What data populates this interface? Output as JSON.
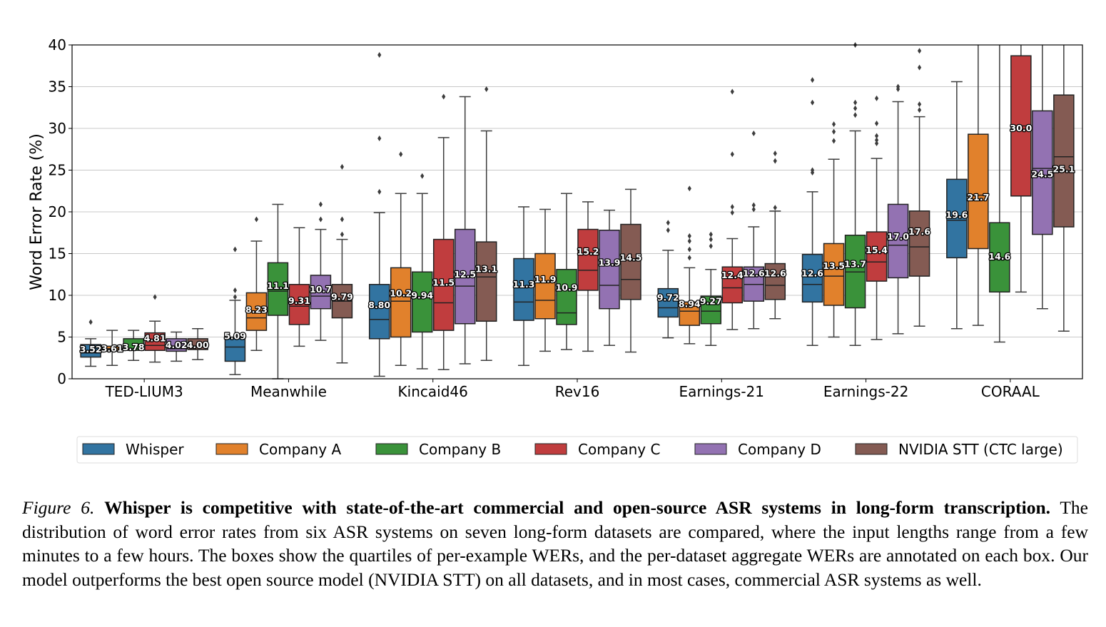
{
  "chart_data": {
    "type": "box",
    "title": "",
    "xlabel": "",
    "ylabel": "Word Error Rate (%)",
    "ylim": [
      0,
      40
    ],
    "yticks": [
      0,
      5,
      10,
      15,
      20,
      25,
      30,
      35,
      40
    ],
    "grid": true,
    "legend_placement": "bottom",
    "categories": [
      "TED-LIUM3",
      "Meanwhile",
      "Kincaid46",
      "Rev16",
      "Earnings-21",
      "Earnings-22",
      "CORAAL"
    ],
    "series": [
      {
        "name": "Whisper",
        "color": "#3274a1",
        "labels": [
          "3.52",
          "5.09",
          "8.80",
          "11.3",
          "9.72",
          "12.6",
          "19.6"
        ],
        "boxes": [
          {
            "wl": 1.5,
            "q1": 2.6,
            "med": 3.1,
            "q3": 4.1,
            "wh": 4.8,
            "out": [
              6.8
            ]
          },
          {
            "wl": 0.5,
            "q1": 2.1,
            "med": 3.8,
            "q3": 4.8,
            "wh": 9.4,
            "out": [
              9.8,
              10.6,
              15.5
            ]
          },
          {
            "wl": 0.3,
            "q1": 4.8,
            "med": 7.1,
            "q3": 11.3,
            "wh": 19.9,
            "out": [
              22.4,
              28.8,
              38.8
            ]
          },
          {
            "wl": 1.6,
            "q1": 7.0,
            "med": 9.2,
            "q3": 14.4,
            "wh": 20.6,
            "out": []
          },
          {
            "wl": 4.9,
            "q1": 7.4,
            "med": 8.5,
            "q3": 10.8,
            "wh": 15.4,
            "out": [
              17.8,
              18.7
            ]
          },
          {
            "wl": 4.0,
            "q1": 9.2,
            "med": 11.3,
            "q3": 14.9,
            "wh": 22.4,
            "out": [
              24.7,
              25.0,
              33.1,
              35.8
            ]
          },
          {
            "wl": 6.0,
            "q1": 14.5,
            "med": 19.0,
            "q3": 23.9,
            "wh": 35.6,
            "out": []
          }
        ]
      },
      {
        "name": "Company A",
        "color": "#e1812c",
        "labels": [
          "3.61",
          "8.23",
          "10.2",
          "11.9",
          "8.94",
          "13.5",
          "21.7"
        ],
        "boxes": [
          {
            "wl": 1.6,
            "q1": 3.3,
            "med": 3.6,
            "q3": 3.9,
            "wh": 5.8,
            "out": []
          },
          {
            "wl": 3.4,
            "q1": 5.8,
            "med": 7.3,
            "q3": 10.3,
            "wh": 16.5,
            "out": [
              19.1
            ]
          },
          {
            "wl": 1.6,
            "q1": 5.0,
            "med": 9.3,
            "q3": 13.3,
            "wh": 22.2,
            "out": [
              26.9
            ]
          },
          {
            "wl": 3.3,
            "q1": 7.2,
            "med": 9.4,
            "q3": 15.0,
            "wh": 20.3,
            "out": []
          },
          {
            "wl": 4.2,
            "q1": 6.4,
            "med": 8.1,
            "q3": 9.2,
            "wh": 13.3,
            "out": [
              14.5,
              15.5,
              16.5,
              17.1,
              22.8
            ]
          },
          {
            "wl": 5.0,
            "q1": 8.8,
            "med": 12.3,
            "q3": 16.2,
            "wh": 26.3,
            "out": [
              28.5,
              29.6,
              30.5
            ]
          },
          {
            "wl": 6.4,
            "q1": 15.6,
            "med": 22.0,
            "q3": 29.3,
            "wh": 42,
            "out": []
          }
        ]
      },
      {
        "name": "Company B",
        "color": "#3a923a",
        "labels": [
          "3.78",
          "11.1",
          "9.94",
          "10.9",
          "9.27",
          "13.7",
          "14.6"
        ],
        "boxes": [
          {
            "wl": 2.2,
            "q1": 3.4,
            "med": 3.6,
            "q3": 4.8,
            "wh": 5.8,
            "out": []
          },
          {
            "wl": 0.0,
            "q1": 7.6,
            "med": 10.5,
            "q3": 13.9,
            "wh": 20.9,
            "out": []
          },
          {
            "wl": 1.2,
            "q1": 5.6,
            "med": 9.7,
            "q3": 12.8,
            "wh": 22.2,
            "out": [
              24.3
            ]
          },
          {
            "wl": 3.5,
            "q1": 6.5,
            "med": 7.9,
            "q3": 13.1,
            "wh": 22.2,
            "out": []
          },
          {
            "wl": 4.0,
            "q1": 6.6,
            "med": 8.1,
            "q3": 9.9,
            "wh": 13.1,
            "out": [
              15.9,
              16.7,
              17.3
            ]
          },
          {
            "wl": 4.0,
            "q1": 8.5,
            "med": 12.8,
            "q3": 17.2,
            "wh": 29.7,
            "out": [
              31.6,
              32.4,
              33.1,
              40.0
            ]
          },
          {
            "wl": 4.4,
            "q1": 10.4,
            "med": 14.3,
            "q3": 18.7,
            "wh": 42,
            "out": []
          }
        ]
      },
      {
        "name": "Company C",
        "color": "#c03d3e",
        "labels": [
          "4.81",
          "9.31",
          "11.5",
          "15.2",
          "12.4",
          "15.4",
          "30.0"
        ],
        "boxes": [
          {
            "wl": 2.0,
            "q1": 3.4,
            "med": 4.0,
            "q3": 5.5,
            "wh": 6.9,
            "out": [
              9.8
            ]
          },
          {
            "wl": 3.9,
            "q1": 6.5,
            "med": 8.7,
            "q3": 11.3,
            "wh": 18.1,
            "out": []
          },
          {
            "wl": 1.1,
            "q1": 5.8,
            "med": 9.1,
            "q3": 16.7,
            "wh": 28.9,
            "out": [
              33.8
            ]
          },
          {
            "wl": 3.3,
            "q1": 10.6,
            "med": 13.0,
            "q3": 17.9,
            "wh": 21.2,
            "out": []
          },
          {
            "wl": 5.9,
            "q1": 9.1,
            "med": 10.9,
            "q3": 13.4,
            "wh": 16.8,
            "out": [
              19.9,
              20.6,
              26.9,
              34.4
            ]
          },
          {
            "wl": 4.7,
            "q1": 11.7,
            "med": 14.0,
            "q3": 17.6,
            "wh": 26.4,
            "out": [
              28.2,
              28.6,
              29.1,
              30.6,
              33.6
            ]
          },
          {
            "wl": 10.4,
            "q1": 21.9,
            "med": 30.3,
            "q3": 38.7,
            "wh": 42,
            "out": []
          }
        ]
      },
      {
        "name": "Company D",
        "color": "#9372b2",
        "labels": [
          "4.02",
          "10.7",
          "12.5",
          "13.9",
          "12.6",
          "17.0",
          "24.5"
        ],
        "boxes": [
          {
            "wl": 2.1,
            "q1": 3.3,
            "med": 3.6,
            "q3": 4.8,
            "wh": 5.6,
            "out": []
          },
          {
            "wl": 4.6,
            "q1": 8.4,
            "med": 9.9,
            "q3": 12.4,
            "wh": 17.9,
            "out": [
              19.1,
              20.9
            ]
          },
          {
            "wl": 1.8,
            "q1": 6.6,
            "med": 11.1,
            "q3": 17.9,
            "wh": 33.8,
            "out": []
          },
          {
            "wl": 4.0,
            "q1": 8.4,
            "med": 11.2,
            "q3": 17.8,
            "wh": 20.2,
            "out": []
          },
          {
            "wl": 6.0,
            "q1": 9.3,
            "med": 11.3,
            "q3": 13.4,
            "wh": 18.2,
            "out": [
              20.3,
              20.8,
              29.4
            ]
          },
          {
            "wl": 5.4,
            "q1": 12.1,
            "med": 16.0,
            "q3": 20.9,
            "wh": 33.2,
            "out": [
              34.7,
              35.0
            ]
          },
          {
            "wl": 8.4,
            "q1": 17.3,
            "med": 25.2,
            "q3": 32.1,
            "wh": 42,
            "out": []
          }
        ]
      },
      {
        "name": "NVIDIA STT (CTC large)",
        "color": "#845b53",
        "labels": [
          "4.00",
          "9.79",
          "13.1",
          "14.5",
          "12.6",
          "17.6",
          "25.1"
        ],
        "boxes": [
          {
            "wl": 2.3,
            "q1": 3.5,
            "med": 3.8,
            "q3": 4.8,
            "wh": 6.0,
            "out": []
          },
          {
            "wl": 1.9,
            "q1": 7.3,
            "med": 9.3,
            "q3": 11.3,
            "wh": 16.7,
            "out": [
              17.3,
              19.1,
              25.4
            ]
          },
          {
            "wl": 2.2,
            "q1": 6.9,
            "med": 12.2,
            "q3": 16.4,
            "wh": 29.7,
            "out": [
              34.7
            ]
          },
          {
            "wl": 3.2,
            "q1": 9.5,
            "med": 11.9,
            "q3": 18.5,
            "wh": 22.7,
            "out": []
          },
          {
            "wl": 7.2,
            "q1": 9.5,
            "med": 11.2,
            "q3": 13.8,
            "wh": 20.1,
            "out": [
              20.5,
              26.1,
              27.0
            ]
          },
          {
            "wl": 6.3,
            "q1": 12.3,
            "med": 15.8,
            "q3": 20.1,
            "wh": 31.4,
            "out": [
              32.2,
              32.9,
              37.3,
              39.3
            ]
          },
          {
            "wl": 5.7,
            "q1": 18.2,
            "med": 26.6,
            "q3": 34.0,
            "wh": 42,
            "out": []
          }
        ]
      }
    ]
  },
  "caption": {
    "figure_label": "Figure 6.",
    "bold_title": "Whisper is competitive with state-of-the-art commercial and open-source ASR systems in long-form transcription.",
    "body": "The distribution of word error rates from six ASR systems on seven long-form datasets are compared, where the input lengths range from a few minutes to a few hours. The boxes show the quartiles of per-example WERs, and the per-dataset aggregate WERs are annotated on each box. Our model outperforms the best open source model (NVIDIA STT) on all datasets, and in most cases, commercial ASR systems as well."
  }
}
